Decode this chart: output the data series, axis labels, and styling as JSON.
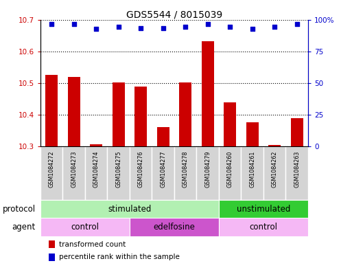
{
  "title": "GDS5544 / 8015039",
  "samples": [
    "GSM1084272",
    "GSM1084273",
    "GSM1084274",
    "GSM1084275",
    "GSM1084276",
    "GSM1084277",
    "GSM1084278",
    "GSM1084279",
    "GSM1084260",
    "GSM1084261",
    "GSM1084262",
    "GSM1084263"
  ],
  "bar_values": [
    10.527,
    10.521,
    10.308,
    10.503,
    10.491,
    10.362,
    10.504,
    10.634,
    10.439,
    10.376,
    10.305,
    10.391
  ],
  "dot_values": [
    97,
    97,
    93,
    95,
    94,
    94,
    95,
    97,
    95,
    93,
    95,
    97
  ],
  "ylim_left": [
    10.3,
    10.7
  ],
  "ylim_right": [
    0,
    100
  ],
  "yticks_left": [
    10.3,
    10.4,
    10.5,
    10.6,
    10.7
  ],
  "yticks_right": [
    0,
    25,
    50,
    75,
    100
  ],
  "ytick_labels_right": [
    "0",
    "25",
    "50",
    "75",
    "100%"
  ],
  "bar_color": "#cc0000",
  "dot_color": "#0000cc",
  "protocol_labels": [
    {
      "text": "stimulated",
      "start": 0,
      "end": 8,
      "color": "#b2f0b2"
    },
    {
      "text": "unstimulated",
      "start": 8,
      "end": 12,
      "color": "#33cc33"
    }
  ],
  "agent_labels": [
    {
      "text": "control",
      "start": 0,
      "end": 4,
      "color": "#f5b8f5"
    },
    {
      "text": "edelfosine",
      "start": 4,
      "end": 8,
      "color": "#cc55cc"
    },
    {
      "text": "control",
      "start": 8,
      "end": 12,
      "color": "#f5b8f5"
    }
  ],
  "legend_bar_label": "transformed count",
  "legend_dot_label": "percentile rank within the sample",
  "xlabel_protocol": "protocol",
  "xlabel_agent": "agent",
  "title_fontsize": 10,
  "tick_fontsize": 7.5,
  "label_fontsize": 8.5,
  "bar_width": 0.55
}
